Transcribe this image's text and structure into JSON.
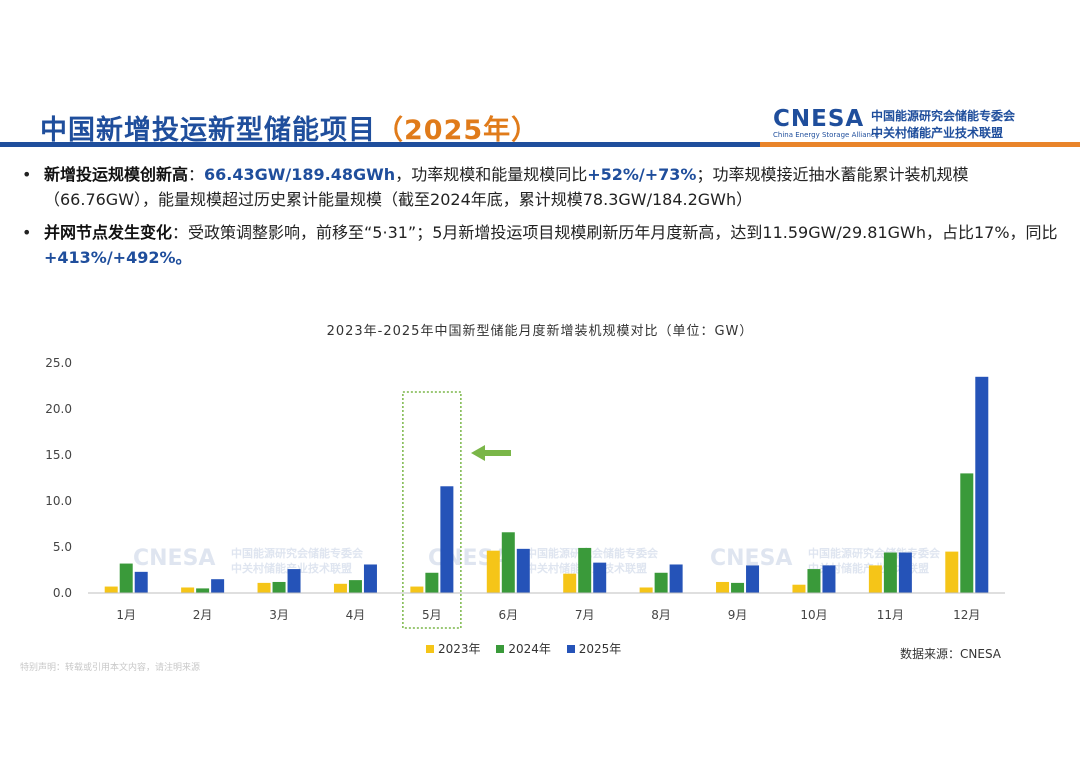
{
  "header": {
    "title_main": "中国新增投运新型储能项目",
    "title_year": "（2025年）",
    "logo_word": "CNESA",
    "logo_sub": "China Energy Storage Alliance",
    "logo_cn_line1": "中国能源研究会储能专委会",
    "logo_cn_line2": "中关村储能产业技术联盟"
  },
  "bullets": [
    {
      "dot": "•",
      "key": "新增投运规模创新高",
      "p1": "：",
      "v1": "66.43GW/189.48GWh",
      "p2": "，功率规模和能量规模同比",
      "v2": "+52%/+73%",
      "p3": "；功率规模接近抽水蓄能累计装机规模（66.76GW），能量规模超过历史累计能量规模（截至2024年底，累计规模78.3GW/184.2GWh）"
    },
    {
      "dot": "•",
      "key": "并网节点发生变化",
      "p1": "：受政策调整影响，前移至“5·31”；5月新增投运项目规模刷新历年月度新高，达到11.59GW/29.81GWh，占比17%，同比",
      "v1": "+413%/+492%。"
    }
  ],
  "chart_data": {
    "type": "bar",
    "title": "2023年-2025年中国新型储能月度新增装机规模对比（单位：GW）",
    "categories": [
      "1月",
      "2月",
      "3月",
      "4月",
      "5月",
      "6月",
      "7月",
      "8月",
      "9月",
      "10月",
      "11月",
      "12月"
    ],
    "ylim": [
      0,
      25
    ],
    "yticks": [
      "0.0",
      "5.0",
      "10.0",
      "15.0",
      "20.0",
      "25.0"
    ],
    "series": [
      {
        "name": "2023年",
        "color": "#f5c518",
        "values": [
          0.7,
          0.6,
          1.1,
          1.0,
          0.7,
          4.6,
          2.1,
          0.6,
          1.2,
          0.9,
          3.0,
          4.5
        ]
      },
      {
        "name": "2024年",
        "color": "#3a9a3a",
        "values": [
          3.2,
          0.5,
          1.2,
          1.4,
          2.2,
          6.6,
          4.9,
          2.2,
          1.1,
          2.6,
          4.4,
          13.0
        ]
      },
      {
        "name": "2025年",
        "color": "#2553b8",
        "values": [
          2.3,
          1.5,
          2.6,
          3.1,
          11.6,
          4.8,
          3.3,
          3.1,
          3.0,
          3.0,
          4.4,
          23.5
        ]
      }
    ],
    "highlight_category": "5月",
    "grid": false,
    "legend_position": "bottom"
  },
  "watermark": {
    "word": "CNESA",
    "line1": "中国能源研究会储能专委会",
    "line2": "中关村储能产业技术联盟"
  },
  "source": "数据来源：CNESA",
  "disclaimer": "特别声明：转载或引用本文内容，请注明来源",
  "colors": {
    "brand_blue": "#1f4e9c",
    "brand_orange": "#e9842a",
    "arrow_green": "#7ab648"
  }
}
